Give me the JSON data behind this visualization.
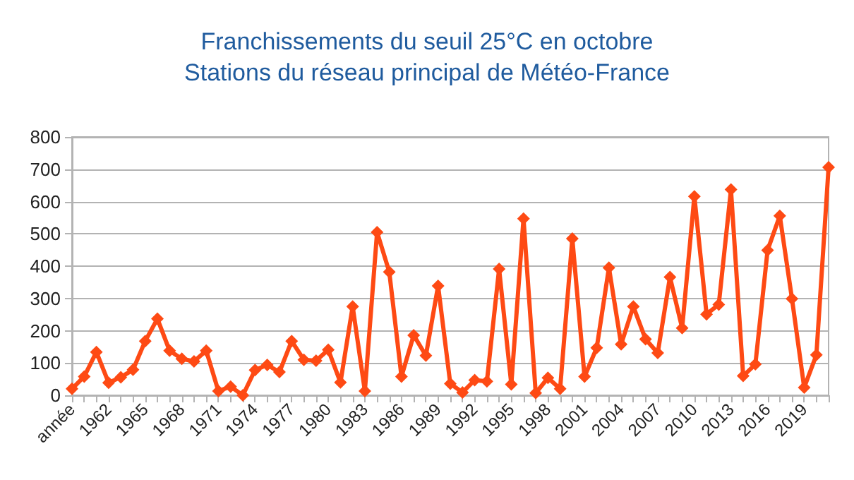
{
  "chart_data": {
    "type": "line",
    "title": "Franchissements du seuil 25°C en octobre",
    "subtitle": "Stations du réseau principal de Météo-France",
    "categories": [
      "année",
      null,
      null,
      "1962",
      null,
      null,
      "1965",
      null,
      null,
      "1968",
      null,
      null,
      "1971",
      null,
      null,
      "1974",
      null,
      null,
      "1977",
      null,
      null,
      "1980",
      null,
      null,
      "1983",
      null,
      null,
      "1986",
      null,
      null,
      "1989",
      null,
      null,
      "1992",
      null,
      null,
      "1995",
      null,
      null,
      "1998",
      null,
      null,
      "2001",
      null,
      null,
      "2004",
      null,
      null,
      "2007",
      null,
      null,
      "2010",
      null,
      null,
      "2013",
      null,
      null,
      "2016",
      null,
      null,
      "2019",
      null,
      null
    ],
    "series": [
      {
        "color": "#fe4a14",
        "values": [
          20,
          58,
          134,
          39,
          56,
          79,
          168,
          237,
          138,
          113,
          105,
          138,
          13,
          27,
          0,
          78,
          94,
          72,
          168,
          110,
          107,
          141,
          40,
          275,
          13,
          505,
          382,
          58,
          186,
          123,
          339,
          36,
          9,
          47,
          43,
          391,
          34,
          547,
          7,
          54,
          20,
          485,
          58,
          147,
          395,
          158,
          275,
          174,
          131,
          366,
          208,
          616,
          251,
          281,
          637,
          60,
          96,
          449,
          556,
          299,
          24,
          125,
          706
        ]
      }
    ],
    "ylim": [
      0,
      800
    ],
    "yticks": [
      0,
      100,
      200,
      300,
      400,
      500,
      600,
      700,
      800
    ],
    "grid": "y",
    "marker": "diamond",
    "line_style": "solid"
  }
}
